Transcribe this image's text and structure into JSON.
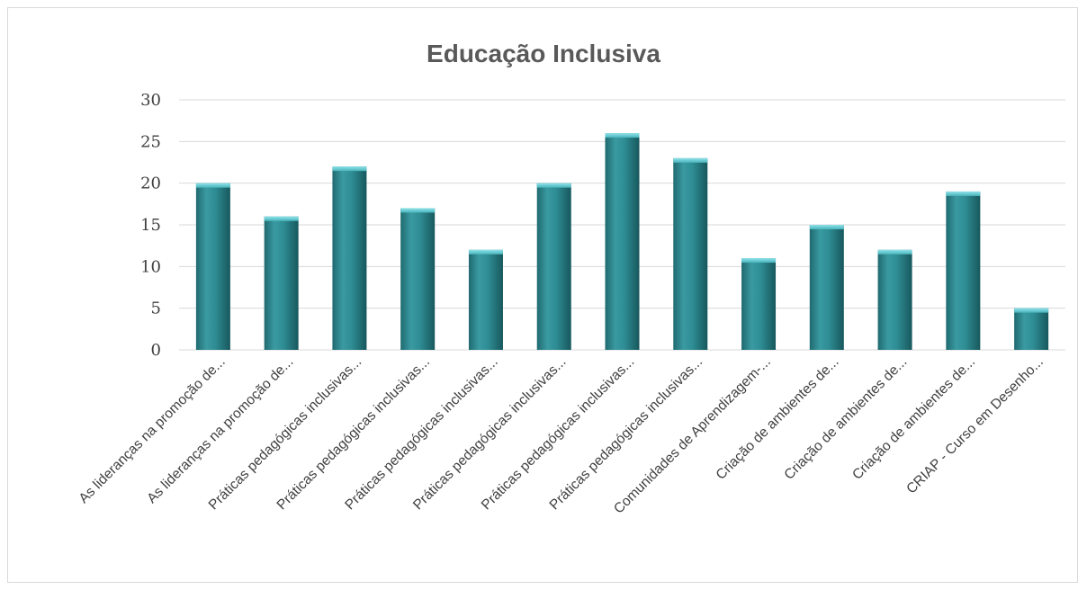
{
  "chart_data": {
    "type": "bar",
    "title": "Educação Inclusiva",
    "xlabel": "",
    "ylabel": "",
    "ylim": [
      0,
      30
    ],
    "yticks": [
      0,
      5,
      10,
      15,
      20,
      25,
      30
    ],
    "grid": true,
    "legend": "none",
    "bar_color": "#2e8a91",
    "categories": [
      "As lideranças na promoção de...",
      "As lideranças na promoção de...",
      "Práticas pedagógicas inclusivas...",
      "Práticas pedagógicas inclusivas...",
      "Práticas pedagógicas inclusivas...",
      "Práticas pedagógicas inclusivas...",
      "Práticas pedagógicas inclusivas...",
      "Práticas pedagógicas inclusivas...",
      "Comunidades de Aprendizagem-...",
      "Criação de ambientes de...",
      "Criação de ambientes de...",
      "Criação de ambientes de...",
      "CRIAP - Curso em Desenho..."
    ],
    "values": [
      20,
      16,
      22,
      17,
      12,
      20,
      26,
      23,
      11,
      15,
      12,
      19,
      5
    ]
  }
}
